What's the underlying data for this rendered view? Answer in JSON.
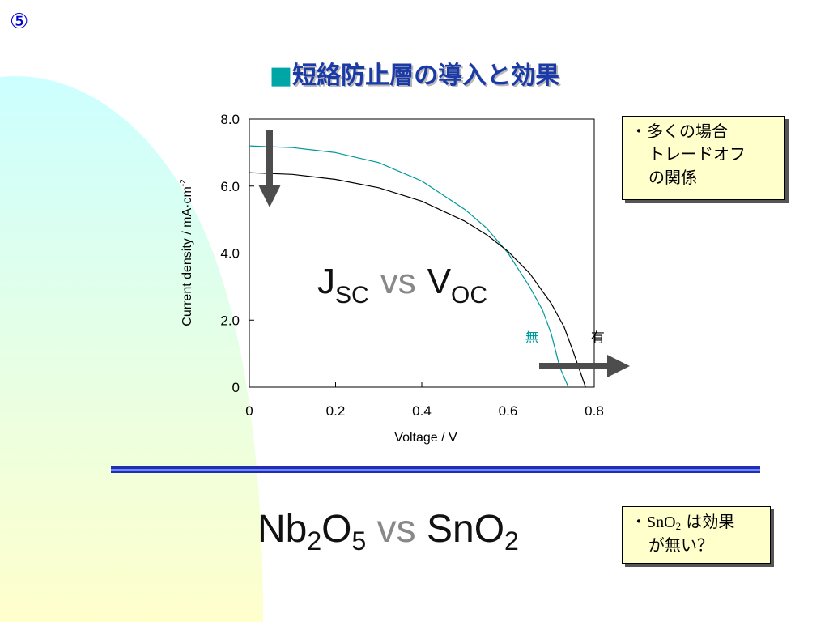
{
  "slide_number": "⑤",
  "title": {
    "marker": "■",
    "text": "短絡防止層の導入と効果"
  },
  "colors": {
    "title": "#1a3aa8",
    "marker": "#00a6a6",
    "series_without": "#009999",
    "series_with": "#000000",
    "note_bg": "#ffffcc",
    "arrow": "#4d4d4d",
    "divider_dark": "#1f2fb0",
    "divider_light": "#6f84ff"
  },
  "chart_annotation": {
    "j": "J",
    "j_sub": "SC",
    "vs": "vs",
    "v": "V",
    "v_sub": "OC"
  },
  "notes": {
    "tradeoff": {
      "bullet": "・",
      "lines": [
        "多くの場合",
        "トレードオフ",
        "の関係"
      ]
    },
    "sno2": {
      "bullet": "・",
      "formula": "SnO",
      "formula_sub": "2",
      "line1_rest": " は効果",
      "line2": "が無い？"
    }
  },
  "bottom_heading": {
    "a": "Nb",
    "a_sub": "2",
    "b": "O",
    "b_sub": "5",
    "vs": "vs",
    "c": "SnO",
    "c_sub": "2"
  },
  "icons": {
    "down_arrow": "down-arrow-icon",
    "right_arrow": "right-arrow-icon"
  },
  "chart_data": {
    "type": "line",
    "xlabel": "Voltage / V",
    "ylabel": "Current density / mA·cm",
    "ylabel_exponent": "-2",
    "xlim": [
      0,
      0.8
    ],
    "ylim": [
      0,
      8.0
    ],
    "x_ticks": [
      0,
      0.2,
      0.4,
      0.6,
      0.8
    ],
    "x_tick_labels": [
      "0",
      "0.2",
      "0.4",
      "0.6",
      "0.8"
    ],
    "y_ticks": [
      0,
      2,
      4,
      6,
      8
    ],
    "y_tick_labels": [
      "0",
      "2.0",
      "4.0",
      "6.0",
      "8.0"
    ],
    "grid": false,
    "series": [
      {
        "name": "無",
        "color": "#009999",
        "x": [
          0,
          0.1,
          0.2,
          0.3,
          0.4,
          0.5,
          0.55,
          0.6,
          0.65,
          0.68,
          0.7,
          0.72,
          0.74
        ],
        "y": [
          7.2,
          7.15,
          7.0,
          6.7,
          6.15,
          5.3,
          4.75,
          4.0,
          3.0,
          2.3,
          1.6,
          0.6,
          0
        ]
      },
      {
        "name": "有",
        "color": "#000000",
        "x": [
          0,
          0.1,
          0.2,
          0.3,
          0.4,
          0.5,
          0.55,
          0.6,
          0.65,
          0.7,
          0.73,
          0.75,
          0.78
        ],
        "y": [
          6.4,
          6.35,
          6.2,
          5.95,
          5.55,
          4.95,
          4.55,
          4.05,
          3.4,
          2.5,
          1.8,
          1.1,
          0
        ]
      }
    ]
  }
}
